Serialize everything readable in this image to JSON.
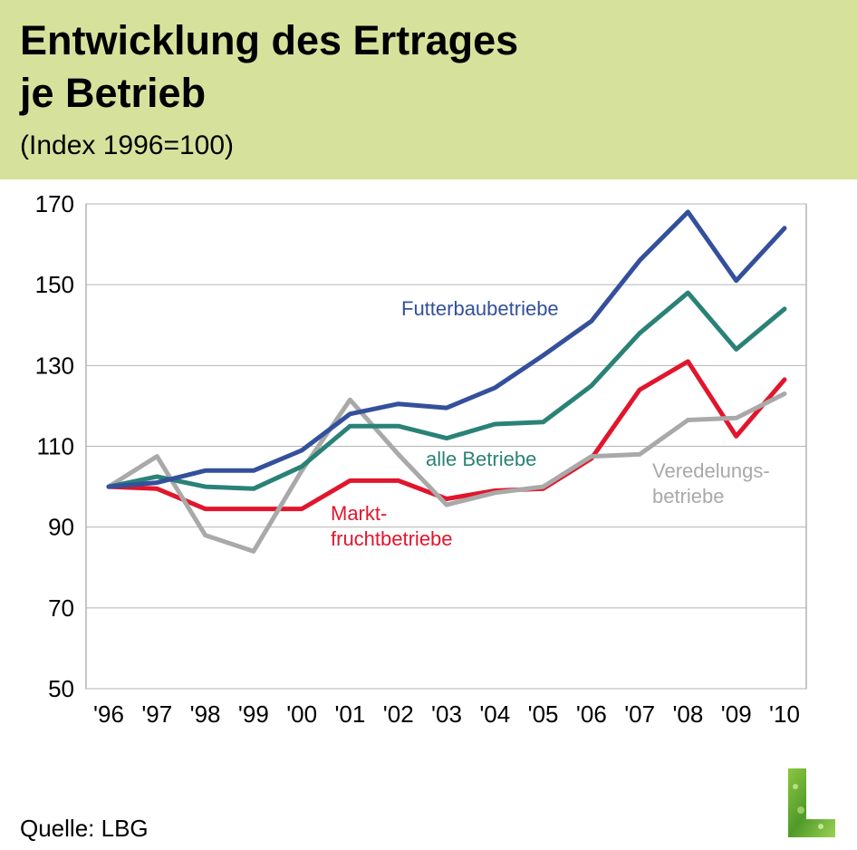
{
  "header": {
    "title": "Entwicklung des Ertrages\nje Betrieb",
    "subtitle": "(Index 1996=100)",
    "background_color": "#d6e29c"
  },
  "footer": {
    "source": "Quelle: LBG"
  },
  "logo": {
    "icon": "green-l-logo-icon",
    "color": "#5aa02c"
  },
  "chart_data": {
    "type": "line",
    "title": "",
    "xlabel": "",
    "ylabel": "",
    "x": [
      "'96",
      "'97",
      "'98",
      "'99",
      "'00",
      "'01",
      "'02",
      "'03",
      "'04",
      "'05",
      "'06",
      "'07",
      "'08",
      "'09",
      "'10"
    ],
    "ylim": [
      50,
      170
    ],
    "yticks": [
      50,
      70,
      90,
      110,
      130,
      150,
      170
    ],
    "grid": true,
    "legend": "none",
    "series": [
      {
        "name": "Futterbaubetriebe",
        "color": "#34509c",
        "values": [
          100,
          101,
          104,
          104,
          109,
          118,
          120.5,
          119.5,
          124.5,
          132.5,
          141,
          156,
          168,
          151,
          164
        ]
      },
      {
        "name": "alle Betriebe",
        "color": "#2a8277",
        "values": [
          100,
          102.5,
          100,
          99.5,
          105,
          115,
          115,
          112,
          115.5,
          116,
          125,
          138,
          148,
          134,
          144
        ]
      },
      {
        "name": "Markt-\nfruchtbetriebe",
        "color": "#e1162c",
        "values": [
          100,
          99.5,
          94.5,
          94.5,
          94.5,
          101.5,
          101.5,
          97,
          99,
          99.5,
          107,
          124,
          131,
          112.5,
          126.5
        ]
      },
      {
        "name": "Veredelungs-\nbetriebe",
        "color": "#a9a9a9",
        "values": [
          100,
          107.5,
          88,
          84,
          104,
          121.5,
          108,
          95.5,
          98.5,
          100,
          107.5,
          108,
          116.5,
          117,
          123
        ]
      }
    ]
  }
}
